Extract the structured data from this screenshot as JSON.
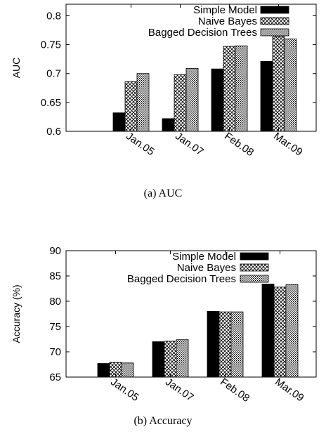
{
  "chart_data": [
    {
      "type": "bar",
      "caption": "(a) AUC",
      "ylabel": "AUC",
      "ylim": [
        0.6,
        0.82
      ],
      "yticks": [
        0.6,
        0.65,
        0.7,
        0.75,
        0.8
      ],
      "ytick_labels": [
        "0.6",
        "0.65",
        "0.7",
        "0.75",
        "0.8"
      ],
      "categories": [
        "Jan.05",
        "Jan.07",
        "Feb.08",
        "Mar.09"
      ],
      "legend_position": "top-right",
      "series": [
        {
          "name": "Simple Model",
          "pattern": "solid",
          "values": [
            0.632,
            0.622,
            0.708,
            0.721
          ]
        },
        {
          "name": "Naive Bayes",
          "pattern": "crosshatch",
          "values": [
            0.686,
            0.698,
            0.747,
            0.764
          ]
        },
        {
          "name": "Bagged Decision Trees",
          "pattern": "dots",
          "values": [
            0.7,
            0.709,
            0.748,
            0.76
          ]
        }
      ]
    },
    {
      "type": "bar",
      "caption": "(b) Accuracy",
      "ylabel": "Accuracy (%)",
      "ylim": [
        65,
        90
      ],
      "yticks": [
        65,
        70,
        75,
        80,
        85,
        90
      ],
      "ytick_labels": [
        "65",
        "70",
        "75",
        "80",
        "85",
        "90"
      ],
      "categories": [
        "Jan.05",
        "Jan.07",
        "Feb.08",
        "Mar.09"
      ],
      "legend_position": "top-right",
      "series": [
        {
          "name": "Simple Model",
          "pattern": "solid",
          "values": [
            67.7,
            72.0,
            78.0,
            83.4
          ]
        },
        {
          "name": "Naive Bayes",
          "pattern": "crosshatch",
          "values": [
            67.9,
            72.1,
            77.9,
            82.8
          ]
        },
        {
          "name": "Bagged Decision Trees",
          "pattern": "dots",
          "values": [
            67.8,
            72.4,
            77.9,
            83.3
          ]
        }
      ]
    }
  ]
}
